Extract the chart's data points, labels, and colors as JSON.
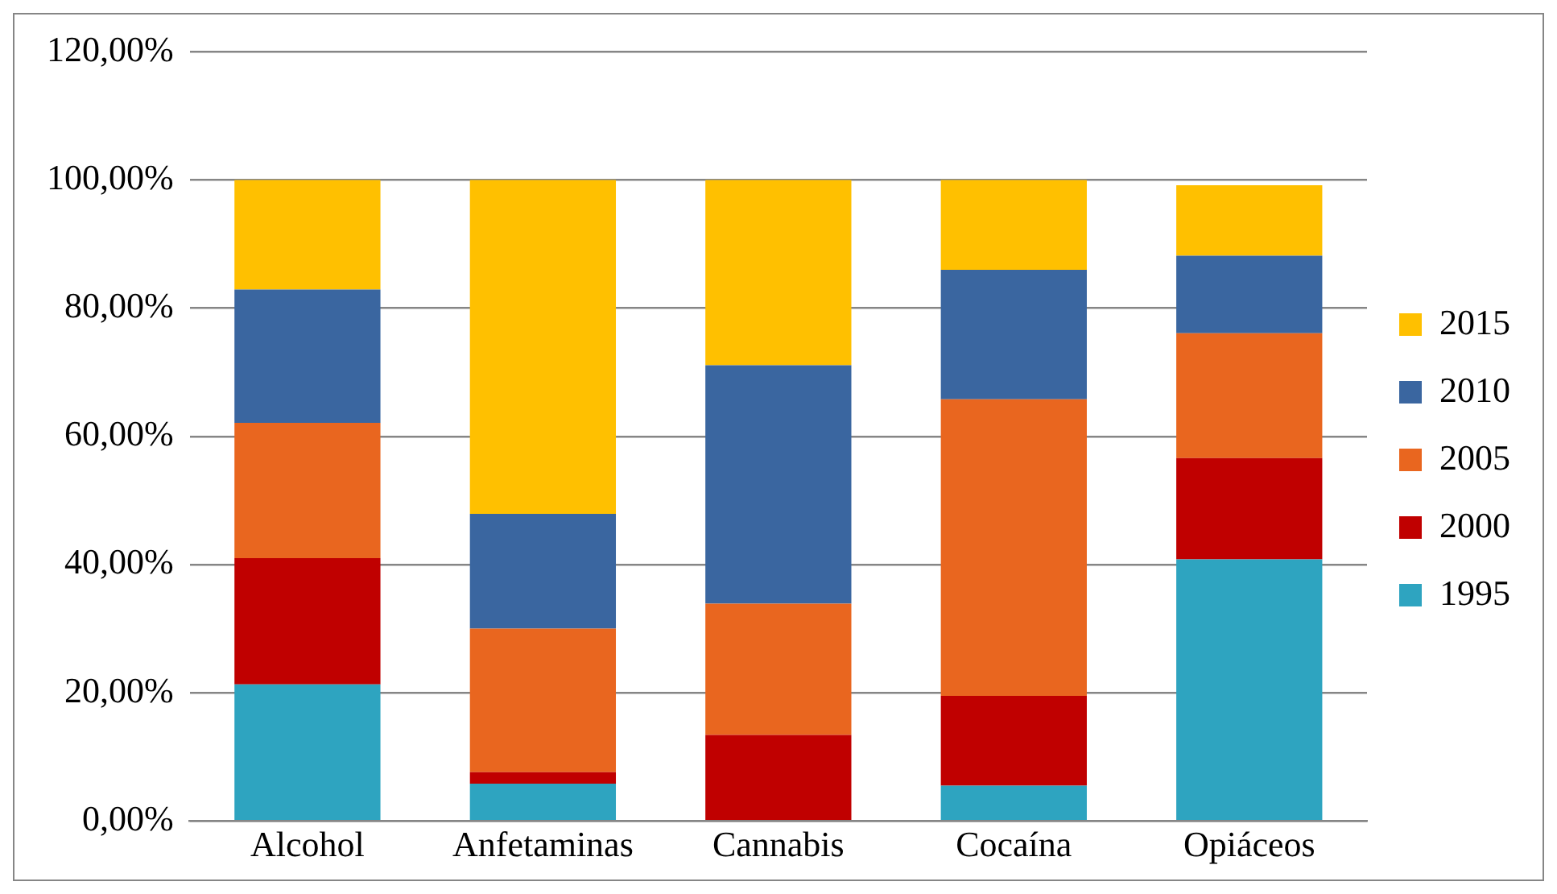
{
  "chart_data": {
    "type": "bar",
    "stacked": true,
    "categories": [
      "Alcohol",
      "Anfetaminas",
      "Cannabis",
      "Cocaína",
      "Opiáceos"
    ],
    "series": [
      {
        "name": "1995",
        "color": "#2ea4c0",
        "values": [
          21.3,
          5.8,
          0,
          5.5,
          40.8
        ]
      },
      {
        "name": "2000",
        "color": "#c00000",
        "values": [
          19.7,
          1.8,
          13.4,
          14.0,
          15.8
        ]
      },
      {
        "name": "2005",
        "color": "#e9661f",
        "values": [
          21.1,
          22.4,
          20.5,
          46.3,
          19.5
        ]
      },
      {
        "name": "2010",
        "color": "#3a66a0",
        "values": [
          20.8,
          17.9,
          37.2,
          20.2,
          12.1
        ]
      },
      {
        "name": "2015",
        "color": "#ffc000",
        "values": [
          17.1,
          52.1,
          28.9,
          14.0,
          11.0
        ]
      }
    ],
    "ylim": [
      0,
      120
    ],
    "yticks": [
      {
        "value": 0,
        "label": "0,00%"
      },
      {
        "value": 20,
        "label": "20,00%"
      },
      {
        "value": 40,
        "label": "40,00%"
      },
      {
        "value": 60,
        "label": "60,00%"
      },
      {
        "value": 80,
        "label": "80,00%"
      },
      {
        "value": 100,
        "label": "100,00%"
      },
      {
        "value": 120,
        "label": "120,00%"
      }
    ],
    "grid": "y",
    "legend": "right"
  }
}
